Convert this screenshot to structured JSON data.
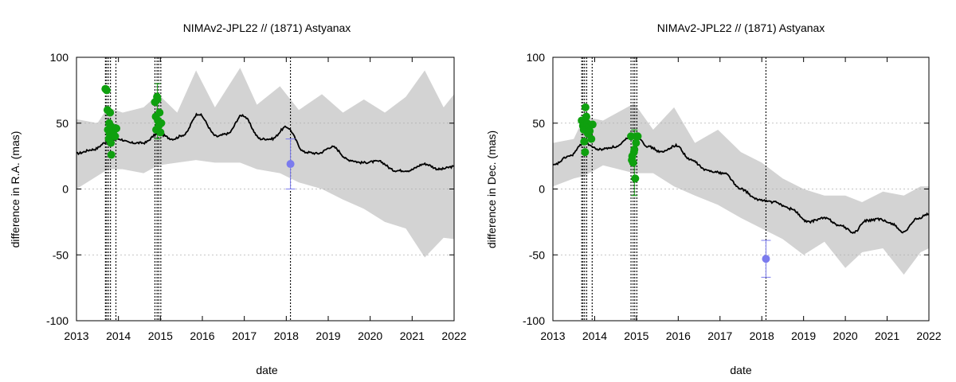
{
  "chart_data": [
    {
      "type": "line",
      "title": "NIMAv2-JPL22 // (1871) Astyanax",
      "xlabel": "date",
      "ylabel": "difference in R.A. (mas)",
      "xlim": [
        2013,
        2022
      ],
      "ylim": [
        -100,
        100
      ],
      "x_ticks": [
        "2013",
        "2014",
        "2015",
        "2016",
        "2017",
        "2018",
        "2019",
        "2020",
        "2021",
        "2022"
      ],
      "y_ticks": [
        "-100",
        "-50",
        "0",
        "50",
        "100"
      ],
      "grid": true,
      "colors": {
        "band": "#d3d3d3",
        "curve": "#000000",
        "green": "#0fa00f",
        "blue": "#7b7bee"
      },
      "band": {
        "x": [
          2013.0,
          2013.5,
          2013.75,
          2014.1,
          2014.6,
          2014.95,
          2015.4,
          2015.85,
          2016.3,
          2016.9,
          2017.3,
          2017.85,
          2018.3,
          2018.85,
          2019.35,
          2019.85,
          2020.35,
          2020.85,
          2021.3,
          2021.75,
          2022.0
        ],
        "upper": [
          53,
          50,
          62,
          58,
          62,
          72,
          58,
          90,
          62,
          92,
          64,
          78,
          60,
          72,
          58,
          68,
          58,
          70,
          90,
          62,
          72
        ],
        "lower": [
          0,
          10,
          15,
          15,
          12,
          18,
          20,
          22,
          20,
          20,
          15,
          12,
          5,
          0,
          -8,
          -15,
          -25,
          -30,
          -52,
          -37,
          -38
        ]
      },
      "curve": {
        "x": [
          2013.0,
          2013.4,
          2013.75,
          2014.0,
          2014.3,
          2014.6,
          2014.95,
          2015.3,
          2015.55,
          2015.9,
          2016.35,
          2016.6,
          2016.95,
          2017.4,
          2017.65,
          2018.0,
          2018.45,
          2018.75,
          2019.1,
          2019.5,
          2019.8,
          2020.2,
          2020.6,
          2020.9,
          2021.3,
          2021.65,
          2022.0
        ],
        "y": [
          27,
          30,
          36,
          38,
          35,
          35,
          42,
          38,
          41,
          57,
          40,
          42,
          56,
          38,
          38,
          47,
          28,
          27,
          32,
          22,
          20,
          21,
          14,
          14,
          19,
          15,
          17
        ]
      },
      "event_lines": [
        2013.69,
        2013.72,
        2013.76,
        2013.81,
        2013.94,
        2014.87,
        2014.92,
        2014.96,
        2015.01,
        2018.1
      ],
      "green_points": {
        "x": [
          2013.69,
          2013.72,
          2013.74,
          2013.75,
          2013.77,
          2013.78,
          2013.79,
          2013.8,
          2013.82,
          2013.83,
          2013.85,
          2013.88,
          2013.92,
          2013.95,
          2014.87,
          2014.89,
          2014.9,
          2014.92,
          2014.93,
          2014.94,
          2014.96,
          2014.98,
          2015.0,
          2015.02
        ],
        "y": [
          76,
          75,
          60,
          45,
          38,
          50,
          42,
          58,
          35,
          26,
          47,
          44,
          40,
          46,
          66,
          55,
          45,
          70,
          68,
          52,
          48,
          58,
          43,
          50
        ]
      },
      "green_errorbars": {
        "x": [
          2014.93
        ],
        "low": [
          38
        ],
        "high": [
          80
        ]
      },
      "blue_point": {
        "x": 2018.1,
        "y": 19,
        "err_low": 0,
        "err_high": 38
      }
    },
    {
      "type": "line",
      "title": "NIMAv2-JPL22 // (1871) Astyanax",
      "xlabel": "date",
      "ylabel": "difference in Dec. (mas)",
      "xlim": [
        2013,
        2022
      ],
      "ylim": [
        -100,
        100
      ],
      "x_ticks": [
        "2013",
        "2014",
        "2015",
        "2016",
        "2017",
        "2018",
        "2019",
        "2020",
        "2021",
        "2022"
      ],
      "y_ticks": [
        "-100",
        "-50",
        "0",
        "50",
        "100"
      ],
      "grid": true,
      "colors": {
        "band": "#d3d3d3",
        "curve": "#000000",
        "green": "#0fa00f",
        "blue": "#7b7bee"
      },
      "band": {
        "x": [
          2013.0,
          2013.5,
          2013.75,
          2014.2,
          2014.95,
          2015.4,
          2015.9,
          2016.4,
          2016.95,
          2017.5,
          2018.0,
          2018.5,
          2019.0,
          2019.5,
          2020.0,
          2020.4,
          2020.9,
          2021.4,
          2021.8,
          2022.0
        ],
        "upper": [
          35,
          38,
          55,
          52,
          65,
          45,
          62,
          35,
          45,
          28,
          20,
          8,
          0,
          -5,
          -5,
          -10,
          -2,
          -5,
          2,
          2
        ],
        "lower": [
          2,
          8,
          10,
          18,
          12,
          12,
          2,
          -5,
          -12,
          -22,
          -30,
          -38,
          -50,
          -40,
          -60,
          -48,
          -45,
          -65,
          -48,
          -45
        ]
      },
      "curve": {
        "x": [
          2013.0,
          2013.4,
          2013.75,
          2014.1,
          2014.5,
          2014.95,
          2015.3,
          2015.6,
          2015.95,
          2016.3,
          2016.7,
          2017.1,
          2017.5,
          2017.9,
          2018.3,
          2018.7,
          2019.1,
          2019.5,
          2019.9,
          2020.2,
          2020.5,
          2020.8,
          2021.1,
          2021.4,
          2021.7,
          2022.0
        ],
        "y": [
          18,
          25,
          35,
          30,
          32,
          42,
          32,
          28,
          33,
          22,
          14,
          12,
          0,
          -8,
          -10,
          -15,
          -25,
          -22,
          -28,
          -33,
          -24,
          -23,
          -26,
          -33,
          -23,
          -19
        ]
      },
      "event_lines": [
        2013.69,
        2013.72,
        2013.76,
        2013.81,
        2013.94,
        2014.87,
        2014.92,
        2014.96,
        2015.01,
        2018.1
      ],
      "green_points": {
        "x": [
          2013.69,
          2013.72,
          2013.74,
          2013.75,
          2013.77,
          2013.78,
          2013.8,
          2013.82,
          2013.84,
          2013.86,
          2013.88,
          2013.92,
          2013.95,
          2014.87,
          2014.89,
          2014.9,
          2014.92,
          2014.94,
          2014.95,
          2014.97,
          2014.99,
          2015.01,
          2015.03
        ],
        "y": [
          52,
          48,
          45,
          36,
          28,
          62,
          55,
          50,
          42,
          47,
          44,
          38,
          49,
          40,
          22,
          25,
          20,
          28,
          30,
          8,
          35,
          40,
          40
        ]
      },
      "green_errorbars": {
        "x": [
          2014.95
        ],
        "low": [
          -5
        ],
        "high": [
          45
        ]
      },
      "blue_point": {
        "x": 2018.1,
        "y": -53,
        "err_low": -67,
        "err_high": -39
      }
    }
  ]
}
